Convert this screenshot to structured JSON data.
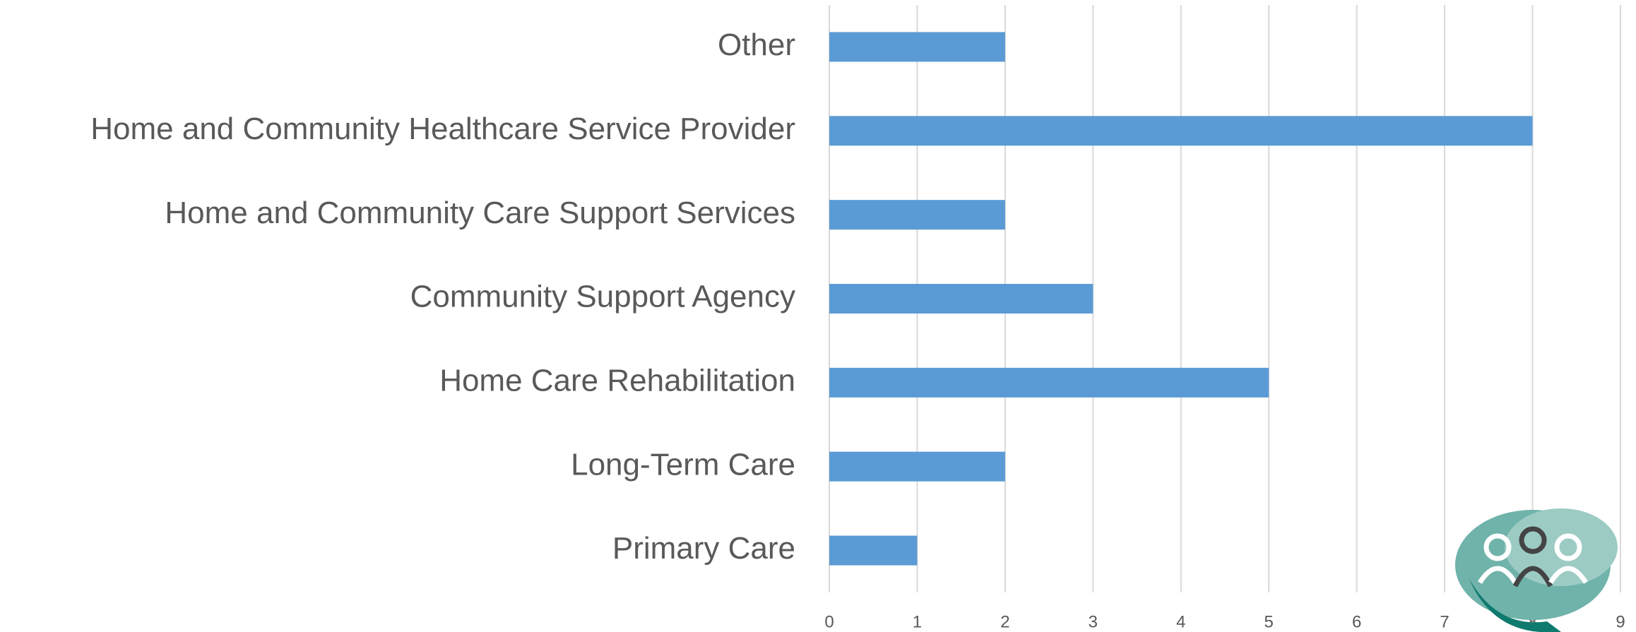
{
  "chart_data": {
    "type": "bar",
    "orientation": "horizontal",
    "categories": [
      "Other",
      "Home and Community Healthcare Service Provider",
      "Home and Community Care Support Services",
      "Community Support Agency",
      "Home Care Rehabilitation",
      "Long-Term Care",
      "Primary Care"
    ],
    "values": [
      2,
      8,
      2,
      3,
      5,
      2,
      1
    ],
    "color": "#5b9bd5",
    "xlim": [
      0,
      9
    ],
    "xticks": [
      0,
      1,
      2,
      3,
      4,
      5,
      6,
      7,
      8,
      9
    ],
    "grid": true
  }
}
